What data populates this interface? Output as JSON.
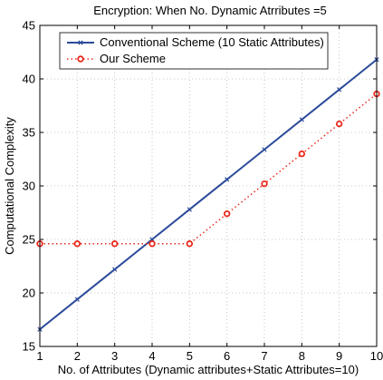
{
  "chart_data": {
    "type": "line",
    "title": "Encryption: When No. Dynamic Atrributes =5",
    "xlabel": "No. of Attributes (Dynamic attributes+Static Attributes=10)",
    "ylabel": "Computational Complexity",
    "xlim": [
      1,
      10
    ],
    "ylim": [
      15,
      45
    ],
    "xticks": [
      1,
      2,
      3,
      4,
      5,
      6,
      7,
      8,
      9,
      10
    ],
    "yticks": [
      15,
      20,
      25,
      30,
      35,
      40,
      45
    ],
    "grid": true,
    "legend_position": "top-left",
    "x": [
      1,
      2,
      3,
      4,
      5,
      6,
      7,
      8,
      9,
      10
    ],
    "series": [
      {
        "name": "Conventional Scheme (10 Static Attributes)",
        "color": "#2b4a9a",
        "style": "solid",
        "marker": "x",
        "values": [
          16.6,
          19.4,
          22.2,
          25.0,
          27.8,
          30.6,
          33.4,
          36.2,
          39.0,
          41.8
        ]
      },
      {
        "name": "Our Scheme",
        "color": "#e8291c",
        "style": "dotted",
        "marker": "circle",
        "values": [
          24.6,
          24.6,
          24.6,
          24.6,
          24.6,
          27.4,
          30.2,
          33.0,
          35.8,
          38.6
        ]
      }
    ]
  }
}
